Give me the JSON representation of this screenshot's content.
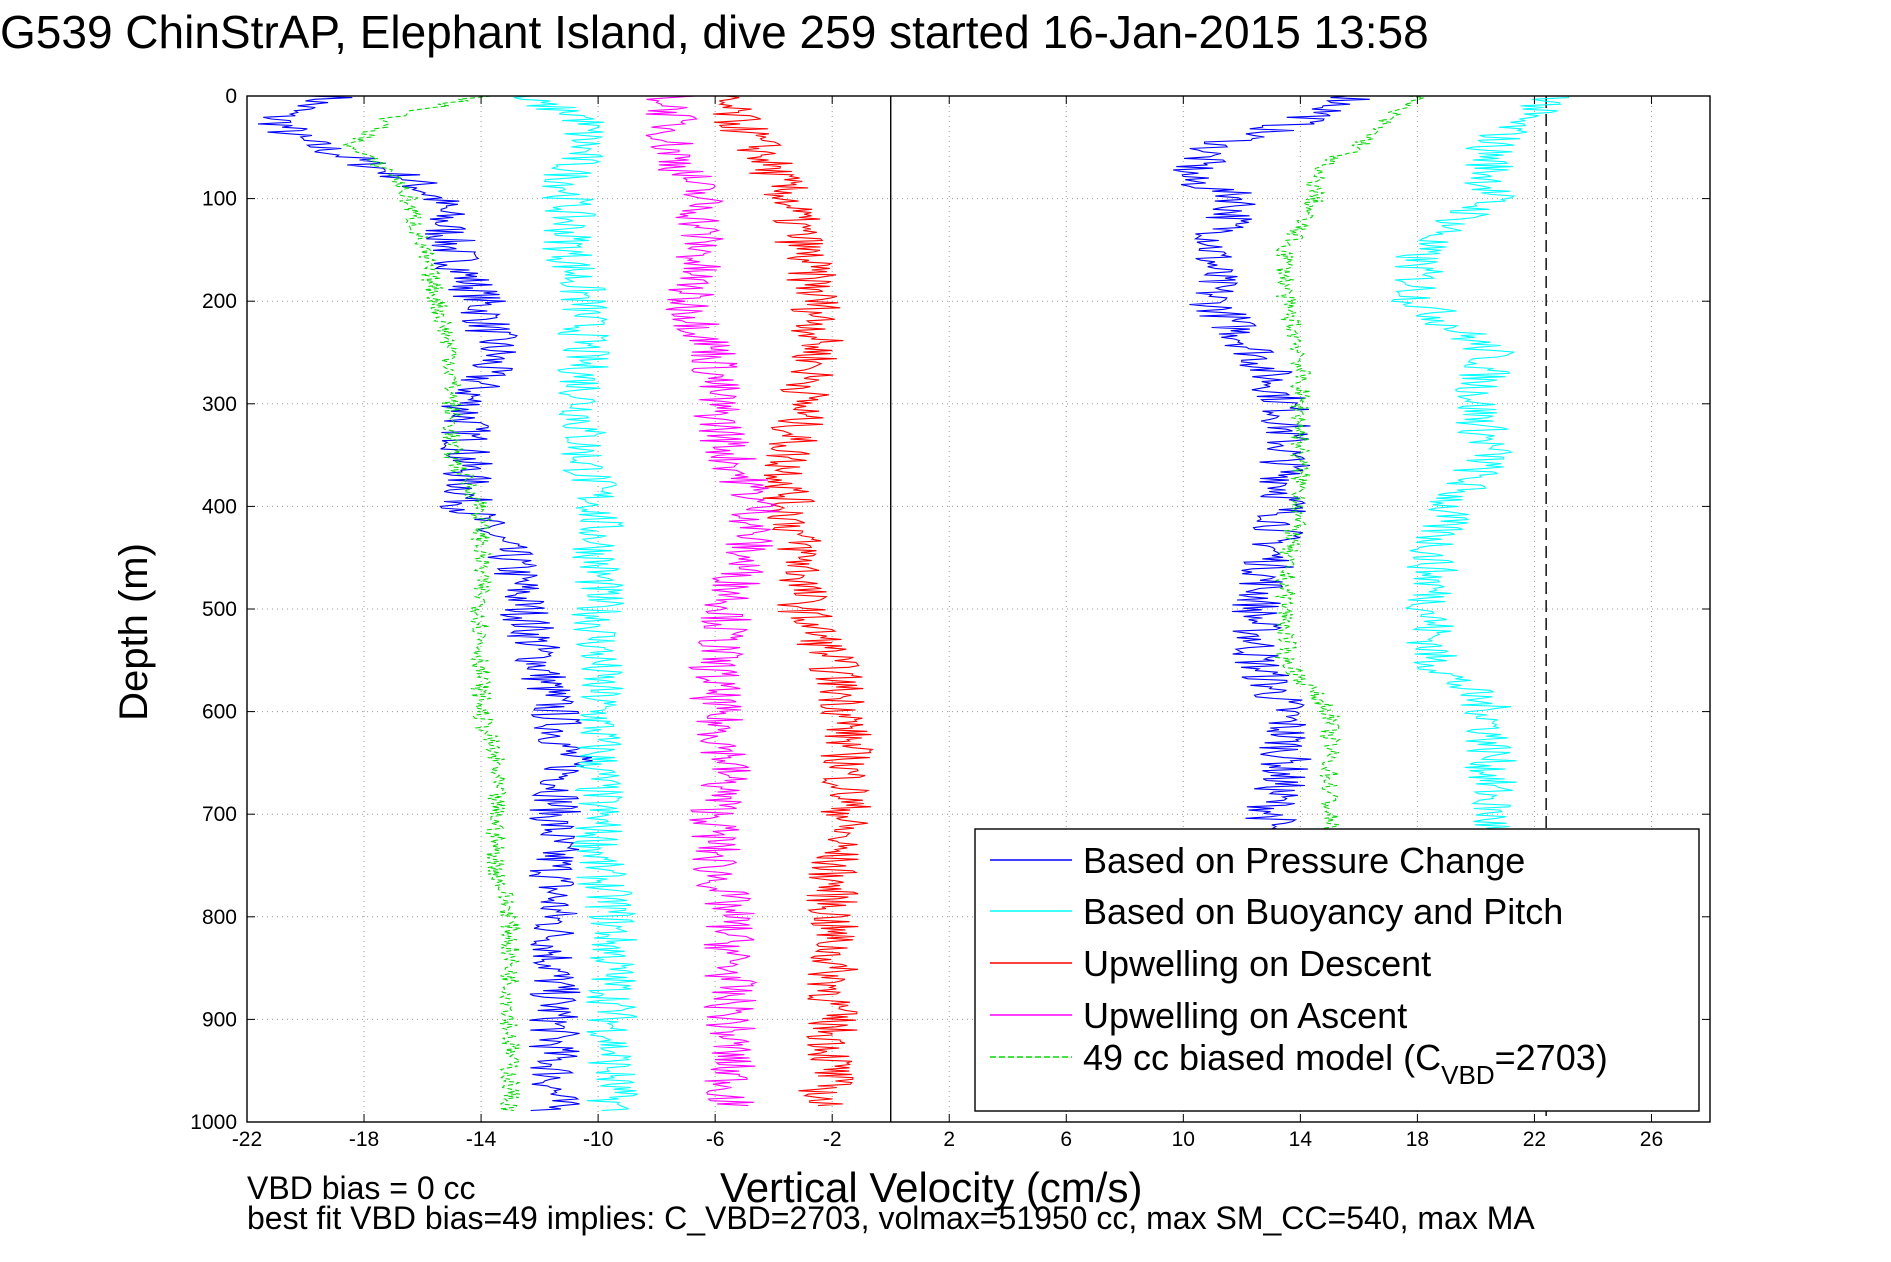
{
  "chart_data": {
    "type": "line",
    "title": "G539 ChinStrAP, Elephant Island, dive 259 started 16-Jan-2015 13:58",
    "xlabel": "Vertical Velocity (cm/s)",
    "ylabel": "Depth (m)",
    "xlim": [
      -22,
      28
    ],
    "ylim": [
      0,
      1000
    ],
    "y_reversed": true,
    "grid": true,
    "x_ticks": [
      -22,
      -18,
      -14,
      -10,
      -6,
      -2,
      2,
      6,
      10,
      14,
      18,
      22,
      26
    ],
    "y_ticks": [
      0,
      100,
      200,
      300,
      400,
      500,
      600,
      700,
      800,
      900,
      1000
    ],
    "reference_lines": [
      {
        "x": 0,
        "style": "solid"
      },
      {
        "x": 22.4,
        "style": "dashed"
      }
    ],
    "legend_position": "bottom-right",
    "series": [
      {
        "name": "Based on Pressure Change",
        "color": "#0000ff",
        "style": "solid",
        "descent": {
          "depth": [
            0,
            20,
            40,
            60,
            80,
            100,
            150,
            200,
            250,
            300,
            350,
            400,
            450,
            500,
            550,
            600,
            650,
            700,
            750,
            800,
            850,
            900,
            950,
            990
          ],
          "value": [
            -19,
            -21,
            -20.5,
            -18.5,
            -16.5,
            -15.5,
            -15,
            -14,
            -13.5,
            -14.5,
            -14.5,
            -14.5,
            -13,
            -12.5,
            -12,
            -11.5,
            -11,
            -11.5,
            -11.5,
            -11.5,
            -11.5,
            -11.5,
            -11.5,
            -11.5
          ]
        },
        "ascent": {
          "depth": [
            990,
            950,
            900,
            850,
            800,
            750,
            720,
            700,
            650,
            600,
            550,
            500,
            450,
            400,
            350,
            300,
            250,
            200,
            150,
            100,
            80,
            50,
            20,
            0
          ],
          "value": [
            15,
            13,
            13,
            13,
            13,
            13,
            13,
            13,
            13.5,
            13.5,
            12.5,
            12.5,
            13,
            13.5,
            13.5,
            13.5,
            12.5,
            11,
            11,
            12,
            10,
            11,
            14.5,
            16
          ]
        }
      },
      {
        "name": "Based on Buoyancy and Pitch",
        "color": "#00ffff",
        "style": "solid",
        "descent": {
          "depth": [
            0,
            20,
            50,
            75,
            100,
            150,
            200,
            250,
            300,
            350,
            400,
            450,
            500,
            550,
            600,
            650,
            700,
            750,
            800,
            850,
            900,
            950,
            990
          ],
          "value": [
            -13,
            -10.5,
            -10.5,
            -11,
            -11,
            -11,
            -10.5,
            -10.5,
            -10.5,
            -10.5,
            -10,
            -10,
            -10,
            -10,
            -10,
            -10,
            -10,
            -10,
            -9.5,
            -9.5,
            -9.5,
            -9.5,
            -9.5
          ]
        },
        "ascent": {
          "depth": [
            720,
            700,
            650,
            600,
            550,
            500,
            450,
            400,
            350,
            300,
            250,
            200,
            150,
            100,
            70,
            50,
            20,
            0
          ],
          "value": [
            20.5,
            20.5,
            20.5,
            20.5,
            18.5,
            18.5,
            18.5,
            19,
            20.5,
            20,
            20.5,
            18,
            18,
            20.5,
            20.5,
            20.5,
            21.5,
            23
          ]
        }
      },
      {
        "name": "Upwelling on Descent",
        "color": "#ff0000",
        "style": "solid",
        "descent": {
          "depth": [
            0,
            50,
            100,
            150,
            200,
            250,
            300,
            350,
            400,
            450,
            500,
            550,
            600,
            650,
            700,
            750,
            800,
            850,
            900,
            950,
            985
          ],
          "value": [
            -6,
            -4.5,
            -3.5,
            -3,
            -2.5,
            -2.5,
            -3,
            -3.5,
            -3.5,
            -3,
            -3,
            -2,
            -1.5,
            -1.5,
            -1.5,
            -2,
            -2,
            -2,
            -2,
            -2,
            -2.5
          ]
        }
      },
      {
        "name": "Upwelling on Ascent",
        "color": "#ff00ff",
        "style": "solid",
        "descent": {
          "depth": [
            0,
            50,
            100,
            150,
            200,
            250,
            300,
            350,
            400,
            450,
            500,
            550,
            600,
            650,
            700,
            750,
            800,
            850,
            900,
            950,
            985
          ],
          "value": [
            -7.5,
            -7.5,
            -6.5,
            -6.5,
            -7,
            -6,
            -6,
            -5.5,
            -4.5,
            -5,
            -5.5,
            -6,
            -6,
            -5.5,
            -6,
            -6,
            -5.5,
            -5.5,
            -5.5,
            -5.5,
            -5.5
          ]
        }
      },
      {
        "name": "49 cc biased model (C_VBD=2703)",
        "legend_prefix": "49 cc biased model (C",
        "legend_sub": "VBD",
        "legend_suffix": "=2703)",
        "color": "#00dd00",
        "style": "dashed",
        "descent": {
          "depth": [
            0,
            20,
            50,
            75,
            100,
            150,
            200,
            250,
            300,
            350,
            400,
            450,
            500,
            550,
            600,
            650,
            700,
            750,
            800,
            850,
            900,
            950,
            990
          ],
          "value": [
            -14,
            -17,
            -18.5,
            -17,
            -16.5,
            -16,
            -15.5,
            -15,
            -15,
            -15,
            -14,
            -14,
            -14,
            -14,
            -14,
            -13.5,
            -13.5,
            -13.5,
            -13,
            -13,
            -13,
            -13,
            -13
          ]
        },
        "ascent": {
          "depth": [
            720,
            700,
            650,
            600,
            550,
            500,
            450,
            400,
            350,
            300,
            250,
            200,
            150,
            100,
            70,
            50,
            20,
            0
          ],
          "value": [
            15,
            15,
            15,
            15,
            13.5,
            13.5,
            13.5,
            14,
            14,
            14,
            14,
            13.5,
            13.5,
            14.5,
            14.5,
            16,
            17,
            18
          ]
        }
      }
    ]
  },
  "annotations": {
    "vbd_bias": "VBD bias = 0 cc",
    "best_fit": "best fit VBD bias=49 implies: C_VBD=2703, volmax=51950 cc, max SM_CC=540, max MA"
  }
}
